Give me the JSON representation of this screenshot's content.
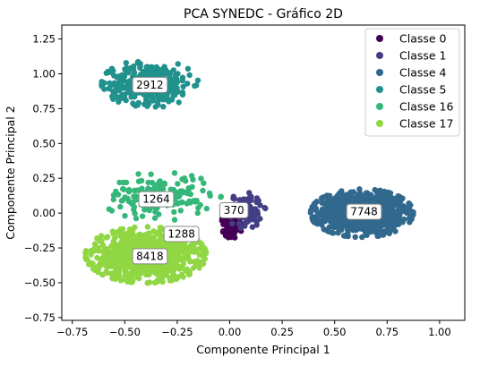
{
  "chart_data": {
    "type": "scatter",
    "title": "PCA SYNEDC - Gráfico 2D",
    "xlabel": "Componente Principal 1",
    "ylabel": "Componente Principal 2",
    "xlim": [
      -0.8,
      1.12
    ],
    "ylim": [
      -0.77,
      1.35
    ],
    "xticks": [
      -0.75,
      -0.5,
      -0.25,
      0.0,
      0.25,
      0.5,
      0.75,
      1.0
    ],
    "xtick_labels": [
      "−0.75",
      "−0.50",
      "−0.25",
      "0.00",
      "0.25",
      "0.50",
      "0.75",
      "1.00"
    ],
    "yticks": [
      -0.75,
      -0.5,
      -0.25,
      0.0,
      0.25,
      0.5,
      0.75,
      1.0,
      1.25
    ],
    "ytick_labels": [
      "−0.75",
      "−0.50",
      "−0.25",
      "0.00",
      "0.25",
      "0.50",
      "0.75",
      "1.00",
      "1.25"
    ],
    "grid": false,
    "legend_position": "top-right",
    "series": [
      {
        "name": "Classe 0",
        "color": "#440154",
        "center": [
          0.01,
          -0.08
        ],
        "spread": [
          0.035,
          0.07
        ],
        "count": 370,
        "count_label_at": [
          0.02,
          0.02
        ]
      },
      {
        "name": "Classe 1",
        "color": "#433e85",
        "center": [
          0.07,
          0.02
        ],
        "spread": [
          0.07,
          0.09
        ],
        "count": 370,
        "count_label_at": [
          0.02,
          0.02
        ]
      },
      {
        "name": "Classe 4",
        "color": "#31688e",
        "center": [
          0.63,
          0.0
        ],
        "spread": [
          0.17,
          0.12
        ],
        "count": 7748,
        "count_label_at": [
          0.64,
          0.01
        ]
      },
      {
        "name": "Classe 5",
        "color": "#21918c",
        "center": [
          -0.38,
          0.93
        ],
        "spread": [
          0.16,
          0.12
        ],
        "count": 2912,
        "count_label_at": [
          -0.38,
          0.92
        ]
      },
      {
        "name": "Classe 16",
        "color": "#35b779",
        "center": [
          -0.33,
          0.12
        ],
        "spread": [
          0.2,
          0.12
        ],
        "count": 1264,
        "count_label_at": [
          -0.35,
          0.1
        ]
      },
      {
        "name": "Classe 17",
        "color": "#90d743",
        "center": [
          -0.4,
          -0.3
        ],
        "spread": [
          0.2,
          0.14
        ],
        "count": 8418,
        "count_label_at": [
          -0.38,
          -0.31
        ]
      }
    ],
    "count_labels": [
      {
        "text": "2912",
        "x": -0.38,
        "y": 0.92
      },
      {
        "text": "1264",
        "x": -0.35,
        "y": 0.1
      },
      {
        "text": "1288",
        "x": -0.23,
        "y": -0.15
      },
      {
        "text": "370",
        "x": 0.02,
        "y": 0.02
      },
      {
        "text": "7748",
        "x": 0.64,
        "y": 0.01
      },
      {
        "text": "8418",
        "x": -0.38,
        "y": -0.31
      }
    ]
  }
}
